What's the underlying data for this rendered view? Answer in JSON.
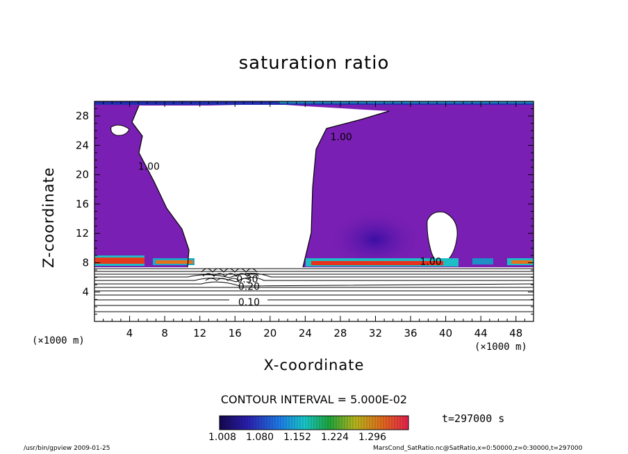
{
  "chart_data": {
    "type": "heatmap",
    "title": "saturation ratio",
    "xlabel": "X-coordinate",
    "ylabel": "Z-coordinate",
    "x_unit_label": "(×1000 m)",
    "x_range": [
      0,
      50
    ],
    "y_range": [
      0,
      30
    ],
    "x_ticks": [
      4,
      8,
      12,
      16,
      20,
      24,
      28,
      32,
      36,
      40,
      44,
      48
    ],
    "y_ticks": [
      4,
      8,
      12,
      16,
      20,
      24,
      28
    ],
    "contour_interval_text": "CONTOUR INTERVAL = 5.000E-02",
    "contour_labels": [
      {
        "text": "1.00",
        "x": 6.2,
        "y": 20.7
      },
      {
        "text": "1.00",
        "x": 28.1,
        "y": 24.7
      },
      {
        "text": "1.00",
        "x": 38.3,
        "y": 7.7
      },
      {
        "text": "0.30",
        "x": 17.4,
        "y": 5.3
      },
      {
        "text": "0.20",
        "x": 17.6,
        "y": 4.3
      },
      {
        "text": "0.10",
        "x": 17.6,
        "y": 2.2
      }
    ],
    "colorbar": {
      "min": 1.008,
      "max": 1.332,
      "tick_labels": [
        "1.008",
        "1.080",
        "1.152",
        "1.224",
        "1.296"
      ]
    },
    "time_label": "t=297000 s",
    "colors": {
      "supersat_fill": "#7a1fb3",
      "supersat_dark": "#2f0a87",
      "background": "#ffffff"
    }
  },
  "footer": {
    "left": "/usr/bin/gpview   2009-01-25",
    "right": "MarsCond_SatRatio.nc@SatRatio,x=0:50000,z=0:30000,t=297000"
  }
}
